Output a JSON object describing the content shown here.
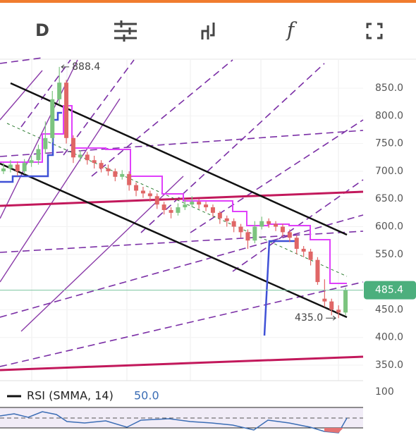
{
  "toolbar": {
    "interval": "D",
    "indicator": "f"
  },
  "chart_data": {
    "type": "candlestick",
    "open": [
      700,
      705,
      712,
      700,
      715,
      720,
      740,
      760,
      830,
      860,
      760,
      725,
      730,
      720,
      715,
      705,
      700,
      690,
      695,
      675,
      665,
      660,
      655,
      640,
      630,
      625,
      635,
      640,
      645,
      640,
      635,
      625,
      615,
      610,
      600,
      590,
      575,
      600,
      610,
      605,
      600,
      590,
      580,
      560,
      555,
      540,
      470,
      465,
      450,
      445
    ],
    "high": [
      715,
      720,
      718,
      722,
      728,
      748,
      790,
      845,
      888.4,
      865,
      765,
      738,
      735,
      728,
      720,
      712,
      705,
      702,
      700,
      680,
      672,
      665,
      660,
      645,
      635,
      642,
      650,
      655,
      650,
      645,
      640,
      628,
      620,
      615,
      605,
      595,
      610,
      618,
      615,
      610,
      605,
      595,
      585,
      565,
      560,
      545,
      505,
      470,
      458,
      490
    ],
    "low": [
      695,
      698,
      692,
      695,
      708,
      712,
      732,
      752,
      820,
      750,
      715,
      718,
      712,
      705,
      698,
      692,
      682,
      685,
      665,
      655,
      652,
      645,
      632,
      622,
      615,
      620,
      630,
      635,
      632,
      628,
      618,
      605,
      600,
      590,
      580,
      560,
      570,
      595,
      598,
      592,
      582,
      572,
      550,
      545,
      530,
      495,
      455,
      440,
      435,
      440
    ],
    "close": [
      705,
      712,
      700,
      715,
      720,
      740,
      760,
      830,
      860,
      760,
      725,
      730,
      720,
      715,
      705,
      700,
      690,
      695,
      675,
      665,
      660,
      655,
      640,
      630,
      625,
      635,
      640,
      645,
      640,
      635,
      625,
      615,
      610,
      600,
      590,
      575,
      600,
      610,
      605,
      600,
      590,
      580,
      560,
      555,
      540,
      500,
      465,
      450,
      445,
      485.4
    ],
    "up_color": "#7cc47f",
    "down_color": "#e06666",
    "ylim": [
      322,
      901
    ],
    "yticks": [
      {
        "value": 850,
        "label": "850.0"
      },
      {
        "value": 800,
        "label": "800.0"
      },
      {
        "value": 750,
        "label": "750.0"
      },
      {
        "value": 700,
        "label": "700.0"
      },
      {
        "value": 650,
        "label": "650.0"
      },
      {
        "value": 600,
        "label": "600.0"
      },
      {
        "value": 550,
        "label": "550.0"
      },
      {
        "value": 450,
        "label": "450.0"
      },
      {
        "value": 400,
        "label": "400.0"
      },
      {
        "value": 350,
        "label": "350.0"
      }
    ],
    "high_label": {
      "value": 888.4,
      "label": "888.4"
    },
    "low_label": {
      "value": 435,
      "label": "435.0"
    },
    "last_price": {
      "value": 485.4,
      "label": "485.4"
    }
  },
  "rsi": {
    "label": "RSI (SMMA, 14)",
    "value": {
      "value": 50,
      "label": "50.0"
    },
    "yticks": [
      100
    ]
  }
}
